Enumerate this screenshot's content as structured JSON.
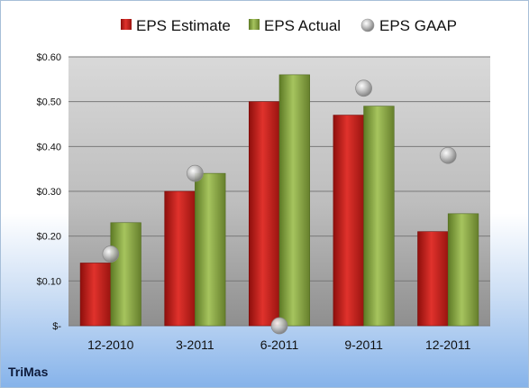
{
  "company": "TriMas",
  "chart_data": {
    "type": "bar",
    "categories": [
      "12-2010",
      "3-2011",
      "6-2011",
      "9-2011",
      "12-2011"
    ],
    "series": [
      {
        "name": "EPS Estimate",
        "kind": "bar",
        "color": "#c8201c",
        "values": [
          0.14,
          0.3,
          0.5,
          0.47,
          0.21
        ]
      },
      {
        "name": "EPS Actual",
        "kind": "bar",
        "color": "#8cab4a",
        "values": [
          0.23,
          0.34,
          0.56,
          0.49,
          0.25
        ]
      },
      {
        "name": "EPS GAAP",
        "kind": "scatter",
        "color": "#b8b8b8",
        "values": [
          0.16,
          0.34,
          0.0,
          0.53,
          0.38
        ]
      }
    ],
    "yticks": [
      0,
      0.1,
      0.2,
      0.3,
      0.4,
      0.5,
      0.6
    ],
    "ytick_labels": [
      "$-",
      "$0.10",
      "$0.20",
      "$0.30",
      "$0.40",
      "$0.50",
      "$0.60"
    ],
    "ylim": [
      0,
      0.6
    ],
    "grid": true,
    "legend": "top"
  }
}
